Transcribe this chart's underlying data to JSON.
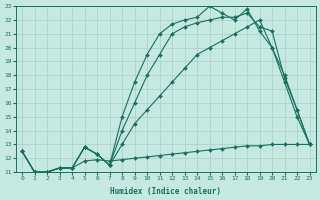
{
  "xlabel": "Humidex (Indice chaleur)",
  "bg_color": "#c5e8e0",
  "grid_color": "#a8cfc8",
  "line_color": "#1a7060",
  "xlim": [
    -0.5,
    23.5
  ],
  "ylim": [
    11,
    23
  ],
  "yticks": [
    11,
    12,
    13,
    14,
    15,
    16,
    17,
    18,
    19,
    20,
    21,
    22,
    23
  ],
  "xticks": [
    0,
    1,
    2,
    3,
    4,
    5,
    6,
    7,
    8,
    9,
    10,
    11,
    12,
    13,
    14,
    15,
    16,
    17,
    18,
    19,
    20,
    21,
    22,
    23
  ],
  "line1_x": [
    0,
    1,
    2,
    3,
    4,
    5,
    6,
    7,
    8,
    9,
    10,
    11,
    12,
    13,
    14,
    15,
    16,
    17,
    18,
    19,
    20,
    21,
    22,
    23
  ],
  "line1_y": [
    12.5,
    11.0,
    11.0,
    11.3,
    11.3,
    11.8,
    11.9,
    11.8,
    11.9,
    12.0,
    12.1,
    12.2,
    12.3,
    12.4,
    12.5,
    12.6,
    12.7,
    12.8,
    12.9,
    12.9,
    13.0,
    13.0,
    13.0,
    13.0
  ],
  "line2_x": [
    0,
    1,
    2,
    3,
    4,
    5,
    6,
    7,
    8,
    9,
    10,
    11,
    12,
    13,
    14,
    15,
    16,
    17,
    18,
    19,
    20,
    21,
    22,
    23
  ],
  "line2_y": [
    12.5,
    11.0,
    11.0,
    11.3,
    11.3,
    12.8,
    12.3,
    11.5,
    13.0,
    14.5,
    15.5,
    16.5,
    17.5,
    18.5,
    19.5,
    20.0,
    20.5,
    21.0,
    21.5,
    22.0,
    20.0,
    18.0,
    15.5,
    13.0
  ],
  "line3_x": [
    0,
    1,
    2,
    3,
    4,
    5,
    6,
    7,
    8,
    9,
    10,
    11,
    12,
    13,
    14,
    15,
    16,
    17,
    18,
    19,
    20,
    21,
    22,
    23
  ],
  "line3_y": [
    12.5,
    11.0,
    11.0,
    11.3,
    11.3,
    12.8,
    12.3,
    11.5,
    14.0,
    16.0,
    18.0,
    19.5,
    21.0,
    21.5,
    21.8,
    22.0,
    22.2,
    22.2,
    22.5,
    21.5,
    21.2,
    17.8,
    15.5,
    13.0
  ],
  "line4_x": [
    0,
    1,
    2,
    3,
    4,
    5,
    6,
    7,
    8,
    9,
    10,
    11,
    12,
    13,
    14,
    15,
    16,
    17,
    18,
    19,
    20,
    21,
    22,
    23
  ],
  "line4_y": [
    12.5,
    11.0,
    11.0,
    11.3,
    11.3,
    12.8,
    12.3,
    11.5,
    15.0,
    17.5,
    19.5,
    21.0,
    21.7,
    22.0,
    22.2,
    23.0,
    22.5,
    22.0,
    22.8,
    21.2,
    20.0,
    17.5,
    15.0,
    13.0
  ]
}
